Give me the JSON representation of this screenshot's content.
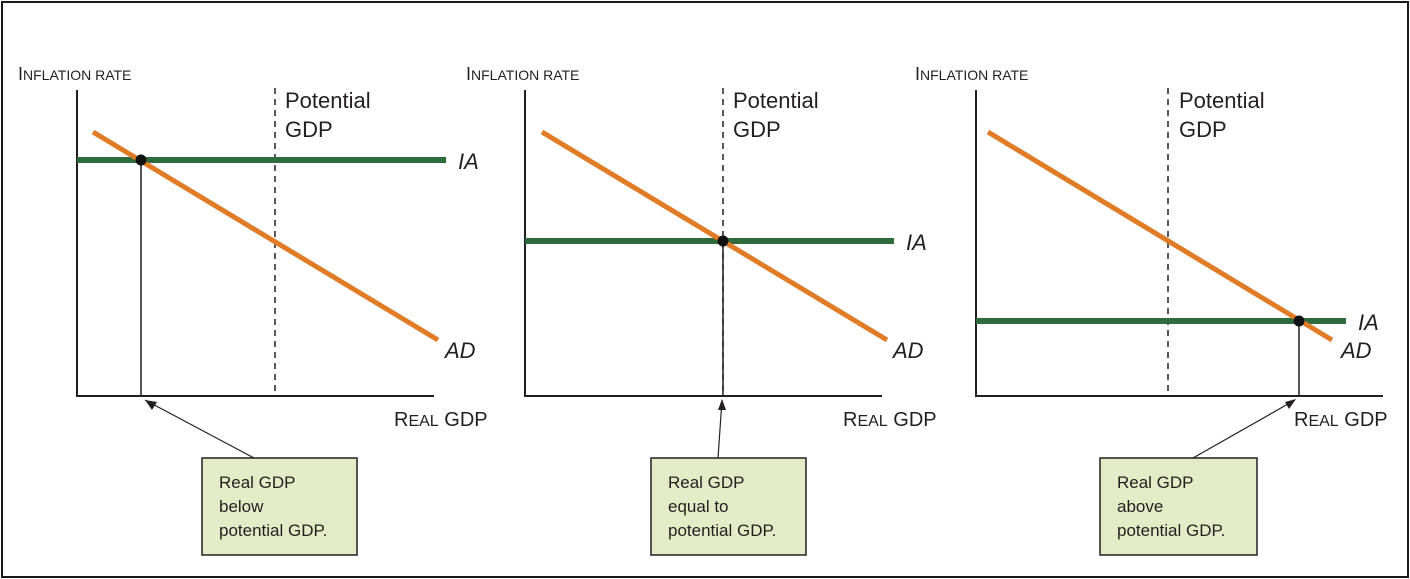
{
  "colors": {
    "ad_curve": "#e07b26",
    "ia_line": "#2e6b3d",
    "callout_fill": "#e3ecc6",
    "axis": "#231f20"
  },
  "labels": {
    "y_axis_cap": "I",
    "y_axis_rest": "NFLATION RATE",
    "x_axis_cap1": "R",
    "x_axis_rest1": "EAL",
    "x_axis_word2": "GDP",
    "potential_line1": "Potential",
    "potential_line2": "GDP",
    "ia": "IA",
    "ad": "AD"
  },
  "panels": [
    {
      "callout": [
        "Real GDP",
        "below",
        "potential GDP."
      ]
    },
    {
      "callout": [
        "Real GDP",
        "equal to",
        "potential GDP."
      ]
    },
    {
      "callout": [
        "Real GDP",
        "above",
        "potential GDP."
      ]
    }
  ]
}
